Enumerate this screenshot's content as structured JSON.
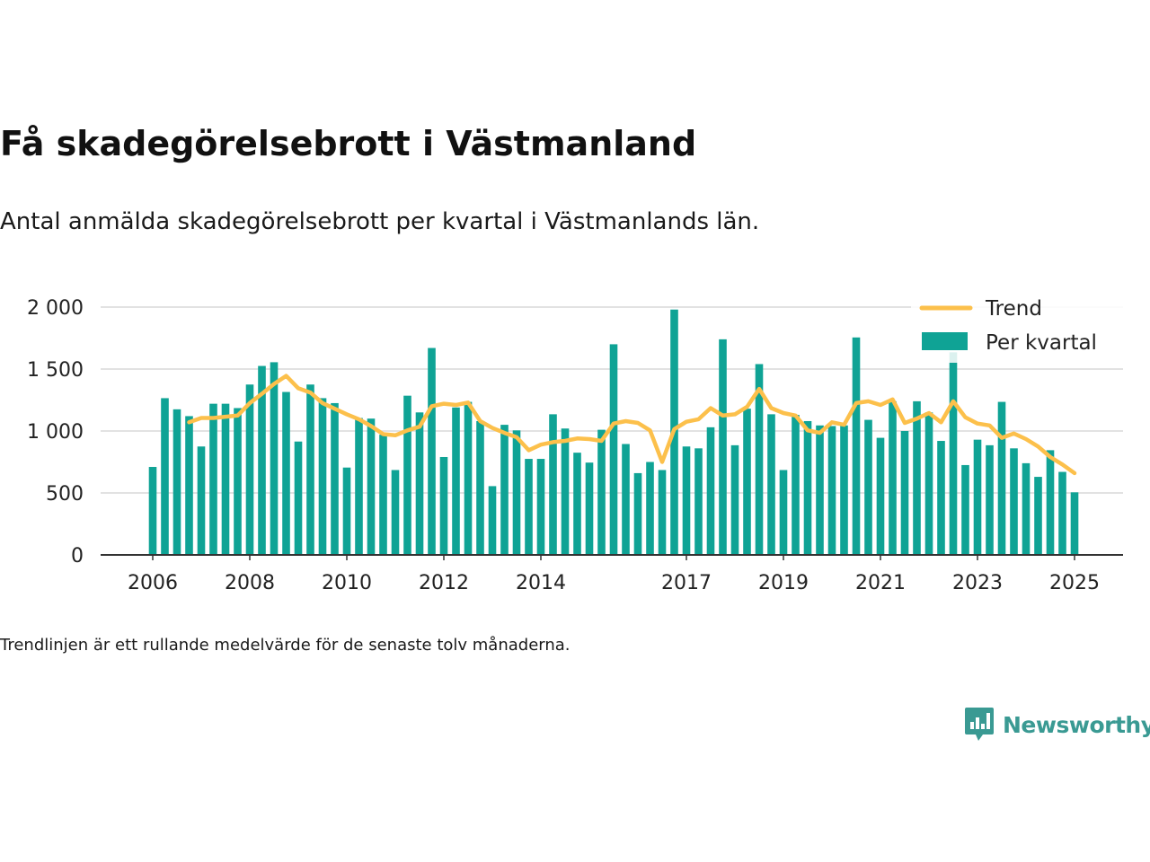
{
  "title": "Få skadegörelsebrott i Västmanland",
  "subtitle": "Antal anmälda skadegörelsebrott per kvartal i Västmanlands län.",
  "footnote": "Trendlinjen är ett rullande medelvärde för de senaste tolv månaderna.",
  "logo": {
    "text": "Newsworthy",
    "icon": "newsworthy-logo-icon"
  },
  "colors": {
    "bar": "#0fa395",
    "trend": "#fcc04b",
    "grid": "#d9d9d9",
    "axis": "#333333",
    "text": "#222222"
  },
  "chart_data": {
    "type": "bar",
    "title": "Få skadegörelsebrott i Västmanland",
    "ylim": [
      0,
      2000
    ],
    "yticks": [
      0,
      500,
      1000,
      1500,
      2000
    ],
    "ytick_labels": [
      "0",
      "500",
      "1 000",
      "1 500",
      "2 000"
    ],
    "xtick_labels": [
      {
        "label": "2006",
        "index": 0
      },
      {
        "label": "2008",
        "index": 8
      },
      {
        "label": "2010",
        "index": 16
      },
      {
        "label": "2012",
        "index": 24
      },
      {
        "label": "2014",
        "index": 32
      },
      {
        "label": "2017",
        "index": 44
      },
      {
        "label": "2019",
        "index": 52
      },
      {
        "label": "2021",
        "index": 60
      },
      {
        "label": "2023",
        "index": 68
      },
      {
        "label": "2025",
        "index": 76
      }
    ],
    "grid": true,
    "legend": {
      "position": "top-right",
      "entries": [
        "Trend",
        "Per kvartal"
      ]
    },
    "series": [
      {
        "name": "Per kvartal",
        "type": "bar",
        "values": [
          710,
          1265,
          1175,
          1120,
          875,
          1220,
          1220,
          1185,
          1375,
          1525,
          1555,
          1315,
          915,
          1375,
          1265,
          1225,
          705,
          1105,
          1100,
          970,
          685,
          1285,
          1150,
          1670,
          790,
          1190,
          1235,
          1080,
          555,
          1050,
          1005,
          775,
          775,
          1135,
          1020,
          825,
          745,
          1010,
          1700,
          895,
          660,
          750,
          685,
          1980,
          875,
          860,
          1030,
          1740,
          885,
          1180,
          1540,
          1135,
          685,
          1130,
          1080,
          1045,
          1040,
          1045,
          1755,
          1090,
          945,
          1240,
          1000,
          1240,
          1150,
          920,
          1635,
          725,
          930,
          885,
          1235,
          860,
          740,
          630,
          845,
          670,
          505
        ]
      },
      {
        "name": "Trend",
        "type": "line",
        "values": [
          null,
          null,
          null,
          1070,
          1105,
          1105,
          1115,
          1125,
          1225,
          1300,
          1380,
          1445,
          1345,
          1310,
          1225,
          1180,
          1135,
          1095,
          1040,
          975,
          965,
          1005,
          1035,
          1200,
          1220,
          1210,
          1230,
          1080,
          1025,
          985,
          950,
          845,
          890,
          910,
          920,
          940,
          935,
          920,
          1060,
          1080,
          1065,
          1005,
          750,
          1015,
          1075,
          1095,
          1185,
          1125,
          1135,
          1195,
          1340,
          1185,
          1145,
          1125,
          1005,
          985,
          1070,
          1050,
          1225,
          1240,
          1210,
          1255,
          1065,
          1100,
          1145,
          1070,
          1240,
          1110,
          1060,
          1045,
          945,
          980,
          935,
          875,
          790,
          730,
          660
        ]
      }
    ]
  }
}
